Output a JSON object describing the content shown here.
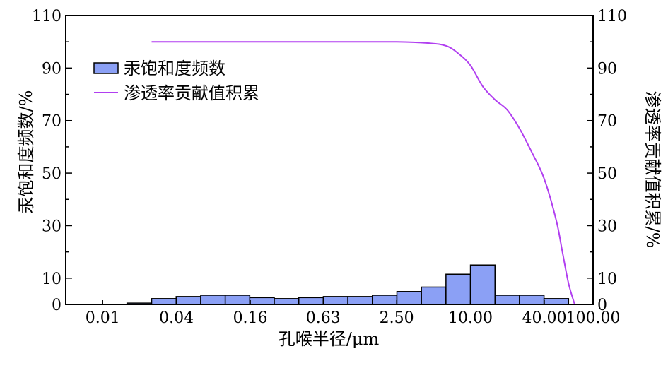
{
  "chart_data": {
    "type": "bar",
    "xlabel": "孔喉半径/μm",
    "ylabel": "汞饱和度频数/%",
    "y2label": "渗透率贡献值积累/%",
    "ylim": [
      0,
      110
    ],
    "y2lim": [
      0,
      110
    ],
    "yticks": [
      0,
      10,
      30,
      50,
      70,
      90,
      110
    ],
    "y2ticks": [
      0,
      10,
      30,
      50,
      70,
      90,
      110
    ],
    "x_scale": "log",
    "xticks": [
      "0.01",
      "0.04",
      "0.16",
      "0.63",
      "2.50",
      "10.00",
      "40.00",
      "100.00"
    ],
    "grid": false,
    "legend_position": "top-left",
    "series": [
      {
        "name": "汞饱和度频数",
        "kind": "bar",
        "color": "#8ba0f5",
        "bins": [
          {
            "x0": 0.01,
            "x1": 0.0158,
            "value": 0.0
          },
          {
            "x0": 0.0158,
            "x1": 0.0251,
            "value": 0.5
          },
          {
            "x0": 0.0251,
            "x1": 0.0398,
            "value": 2.2
          },
          {
            "x0": 0.0398,
            "x1": 0.0631,
            "value": 3.0
          },
          {
            "x0": 0.0631,
            "x1": 0.1,
            "value": 3.5
          },
          {
            "x0": 0.1,
            "x1": 0.1585,
            "value": 3.5
          },
          {
            "x0": 0.1585,
            "x1": 0.2512,
            "value": 2.6
          },
          {
            "x0": 0.2512,
            "x1": 0.3981,
            "value": 2.2
          },
          {
            "x0": 0.3981,
            "x1": 0.631,
            "value": 2.6
          },
          {
            "x0": 0.631,
            "x1": 1.0,
            "value": 3.0
          },
          {
            "x0": 1.0,
            "x1": 1.5849,
            "value": 3.0
          },
          {
            "x0": 1.5849,
            "x1": 2.5119,
            "value": 3.5
          },
          {
            "x0": 2.5119,
            "x1": 3.9811,
            "value": 4.9
          },
          {
            "x0": 3.9811,
            "x1": 6.3096,
            "value": 6.6
          },
          {
            "x0": 6.3096,
            "x1": 10.0,
            "value": 11.5
          },
          {
            "x0": 10.0,
            "x1": 15.849,
            "value": 15.0
          },
          {
            "x0": 15.849,
            "x1": 25.119,
            "value": 3.5
          },
          {
            "x0": 25.119,
            "x1": 39.811,
            "value": 3.5
          },
          {
            "x0": 39.811,
            "x1": 63.096,
            "value": 2.2
          }
        ]
      },
      {
        "name": "渗透率贡献值积累",
        "kind": "line",
        "axis": "right",
        "color": "#b13ff0",
        "points": [
          [
            0.0251,
            100.0
          ],
          [
            0.1,
            100.0
          ],
          [
            0.63,
            100.0
          ],
          [
            2.5,
            100.0
          ],
          [
            4.5,
            99.5
          ],
          [
            6.3,
            98.5
          ],
          [
            8.0,
            95.5
          ],
          [
            10.0,
            91.0
          ],
          [
            12.6,
            83.0
          ],
          [
            15.8,
            78.0
          ],
          [
            20.0,
            74.0
          ],
          [
            25.1,
            67.0
          ],
          [
            31.6,
            58.0
          ],
          [
            39.8,
            48.0
          ],
          [
            50.1,
            32.0
          ],
          [
            56.2,
            20.0
          ],
          [
            63.1,
            8.0
          ],
          [
            70.8,
            0.0
          ]
        ]
      }
    ]
  }
}
